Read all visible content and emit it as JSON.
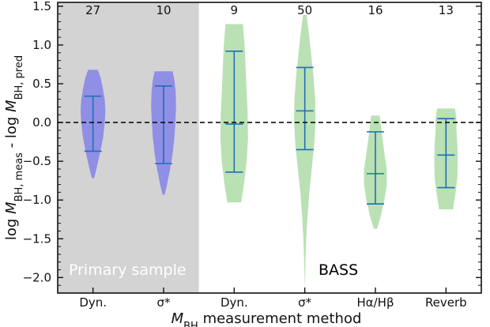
{
  "chart_data": {
    "type": "violin",
    "xlabel": "M_BH measurement method",
    "ylabel": "log M_BH,meas - log M_BH,pred",
    "ylim": [
      -2.2,
      1.55
    ],
    "yticks": [
      "1.5",
      "1.0",
      "0.5",
      "0.0",
      "−0.5",
      "−1.0",
      "−1.5",
      "−2.0"
    ],
    "reference_line": {
      "y": 0.0,
      "style": "dashed"
    },
    "groups": [
      {
        "name": "Primary sample",
        "categories": [
          0,
          1
        ],
        "background": "#d3d3d3",
        "label_color": "#ffffff"
      },
      {
        "name": "BASS",
        "categories": [
          2,
          3,
          4,
          5
        ],
        "background": "#ffffff",
        "label_color": "#000000"
      }
    ],
    "categories": [
      "Dyn.",
      "σ*",
      "Dyn.",
      "σ*",
      "Hα/Hβ",
      "Reverb"
    ],
    "counts": [
      "27",
      "10",
      "9",
      "50",
      "16",
      "13"
    ],
    "colors": {
      "primary": "#8f8fe6",
      "bass": "#b9e1b3",
      "bar": "#1f6fb5"
    },
    "violins": [
      {
        "category": "Dyn.",
        "n": 27,
        "color": "primary",
        "min": -0.72,
        "max": 0.68,
        "p16": -0.37,
        "median": null,
        "p84": 0.34,
        "profile": [
          [
            -0.72,
            0.03
          ],
          [
            -0.6,
            0.1
          ],
          [
            -0.4,
            0.2
          ],
          [
            -0.2,
            0.29
          ],
          [
            0.0,
            0.34
          ],
          [
            0.15,
            0.36
          ],
          [
            0.3,
            0.34
          ],
          [
            0.45,
            0.28
          ],
          [
            0.58,
            0.22
          ],
          [
            0.68,
            0.14
          ]
        ]
      },
      {
        "category": "σ*",
        "n": 10,
        "color": "primary",
        "min": -0.93,
        "max": 0.66,
        "p16": -0.53,
        "median": null,
        "p84": 0.47,
        "profile": [
          [
            -0.93,
            0.03
          ],
          [
            -0.8,
            0.1
          ],
          [
            -0.6,
            0.19
          ],
          [
            -0.4,
            0.26
          ],
          [
            -0.2,
            0.31
          ],
          [
            0.0,
            0.34
          ],
          [
            0.2,
            0.36
          ],
          [
            0.4,
            0.35
          ],
          [
            0.55,
            0.31
          ],
          [
            0.66,
            0.26
          ]
        ]
      },
      {
        "category": "Dyn.",
        "n": 9,
        "color": "bass",
        "min": -1.03,
        "max": 1.27,
        "p16": -0.64,
        "median": -0.02,
        "p84": 0.92,
        "profile": [
          [
            -1.03,
            0.2
          ],
          [
            -0.8,
            0.28
          ],
          [
            -0.5,
            0.36
          ],
          [
            -0.2,
            0.4
          ],
          [
            0.1,
            0.39
          ],
          [
            0.4,
            0.36
          ],
          [
            0.7,
            0.33
          ],
          [
            1.0,
            0.3
          ],
          [
            1.27,
            0.25
          ]
        ]
      },
      {
        "category": "σ*",
        "n": 50,
        "color": "bass",
        "min": -2.13,
        "max": 1.39,
        "p16": -0.35,
        "median": 0.15,
        "p84": 0.71,
        "profile": [
          [
            -2.13,
            0.0
          ],
          [
            -1.8,
            0.02
          ],
          [
            -1.5,
            0.04
          ],
          [
            -1.2,
            0.08
          ],
          [
            -0.9,
            0.13
          ],
          [
            -0.6,
            0.2
          ],
          [
            -0.3,
            0.27
          ],
          [
            0.0,
            0.31
          ],
          [
            0.3,
            0.3
          ],
          [
            0.6,
            0.25
          ],
          [
            0.9,
            0.18
          ],
          [
            1.15,
            0.12
          ],
          [
            1.39,
            0.05
          ]
        ]
      },
      {
        "category": "Hα/Hβ",
        "n": 16,
        "color": "bass",
        "min": -1.37,
        "max": 0.09,
        "p16": -1.05,
        "median": -0.66,
        "p84": -0.12,
        "profile": [
          [
            -1.37,
            0.05
          ],
          [
            -1.2,
            0.16
          ],
          [
            -1.0,
            0.26
          ],
          [
            -0.8,
            0.33
          ],
          [
            -0.6,
            0.33
          ],
          [
            -0.4,
            0.26
          ],
          [
            -0.2,
            0.2
          ],
          [
            0.0,
            0.15
          ],
          [
            0.09,
            0.12
          ]
        ]
      },
      {
        "category": "Reverb",
        "n": 13,
        "color": "bass",
        "min": -1.12,
        "max": 0.18,
        "p16": -0.84,
        "median": -0.42,
        "p84": 0.05,
        "profile": [
          [
            -1.12,
            0.2
          ],
          [
            -0.9,
            0.28
          ],
          [
            -0.7,
            0.33
          ],
          [
            -0.5,
            0.34
          ],
          [
            -0.3,
            0.33
          ],
          [
            -0.1,
            0.3
          ],
          [
            0.05,
            0.3
          ],
          [
            0.18,
            0.26
          ]
        ]
      }
    ]
  },
  "labels": {
    "primary_group": "Primary sample",
    "bass_group": "BASS",
    "xlabel_main": "M",
    "xlabel_sub": "BH",
    "xlabel_rest": " measurement method",
    "ylabel_prefix": "log ",
    "ylabel_m1": "M",
    "ylabel_sub1": "BH, meas",
    "ylabel_mid": " - log ",
    "ylabel_m2": "M",
    "ylabel_sub2": "BH, pred"
  }
}
